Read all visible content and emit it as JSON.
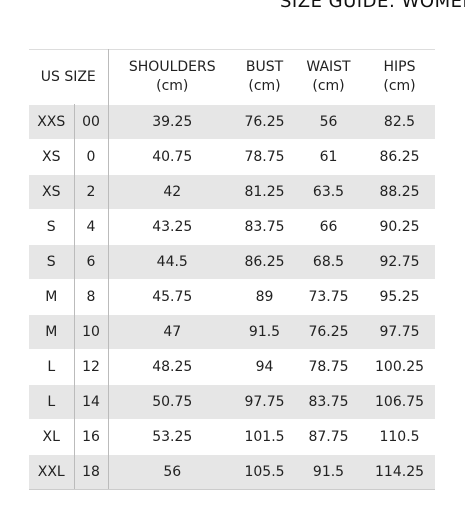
{
  "title": "SIZE GUIDE: WOMEN",
  "table": {
    "headers": {
      "us_size": "US SIZE",
      "shoulders": "SHOULDERS",
      "bust": "BUST",
      "waist": "WAIST",
      "hips": "HIPS",
      "unit": "(cm)"
    },
    "rows": [
      [
        "XXS",
        "00",
        "39.25",
        "76.25",
        "56",
        "82.5"
      ],
      [
        "XS",
        "0",
        "40.75",
        "78.75",
        "61",
        "86.25"
      ],
      [
        "XS",
        "2",
        "42",
        "81.25",
        "63.5",
        "88.25"
      ],
      [
        "S",
        "4",
        "43.25",
        "83.75",
        "66",
        "90.25"
      ],
      [
        "S",
        "6",
        "44.5",
        "86.25",
        "68.5",
        "92.75"
      ],
      [
        "M",
        "8",
        "45.75",
        "89",
        "73.75",
        "95.25"
      ],
      [
        "M",
        "10",
        "47",
        "91.5",
        "76.25",
        "97.75"
      ],
      [
        "L",
        "12",
        "48.25",
        "94",
        "78.75",
        "100.25"
      ],
      [
        "L",
        "14",
        "50.75",
        "97.75",
        "83.75",
        "106.75"
      ],
      [
        "XL",
        "16",
        "53.25",
        "101.5",
        "87.75",
        "110.5"
      ],
      [
        "XXL",
        "18",
        "56",
        "105.5",
        "91.5",
        "114.25"
      ]
    ]
  },
  "colors": {
    "shaded_row": "#e6e6e6",
    "text": "#222222",
    "border": "#dddddd"
  }
}
